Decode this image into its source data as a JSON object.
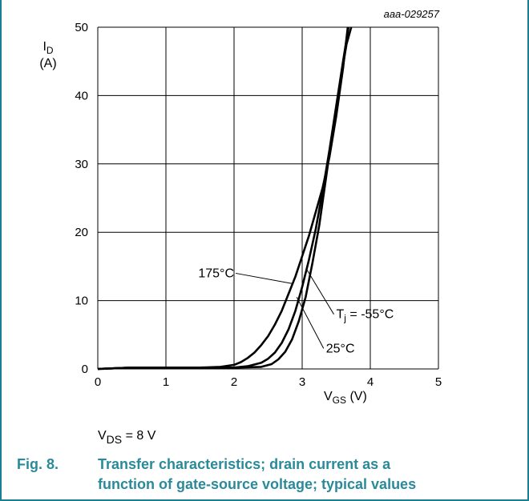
{
  "figure": {
    "code": "aaa-029257",
    "number": "Fig. 8.",
    "caption_line1": "Transfer characteristics; drain current as a",
    "caption_line2": "function of gate-source voltage; typical values",
    "condition": {
      "var": "V",
      "sub": "DS",
      "rest": " = 8 V"
    },
    "accent_color": "#2a8a9a"
  },
  "chart_data": {
    "type": "line",
    "xlabel": {
      "var": "V",
      "sub": "GS",
      "unit": " (V)"
    },
    "ylabel": {
      "var": "I",
      "sub": "D",
      "unit": "(A)"
    },
    "xlim": [
      0,
      5
    ],
    "ylim": [
      0,
      50
    ],
    "xticks": [
      "0",
      "1",
      "2",
      "3",
      "4",
      "5"
    ],
    "yticks": [
      "0",
      "10",
      "20",
      "30",
      "40",
      "50"
    ],
    "grid": true,
    "legend": "none",
    "series": [
      {
        "name": "175°C",
        "points": [
          [
            0,
            0
          ],
          [
            0.5,
            0.2
          ],
          [
            1,
            0.2
          ],
          [
            1.5,
            0.2
          ],
          [
            1.8,
            0.3
          ],
          [
            2.0,
            0.6
          ],
          [
            2.1,
            1.0
          ],
          [
            2.2,
            1.6
          ],
          [
            2.3,
            2.4
          ],
          [
            2.4,
            3.5
          ],
          [
            2.5,
            4.8
          ],
          [
            2.6,
            6.5
          ],
          [
            2.7,
            8.5
          ],
          [
            2.8,
            11
          ],
          [
            2.9,
            13.5
          ],
          [
            3.0,
            16.5
          ],
          [
            3.1,
            19.5
          ],
          [
            3.2,
            23
          ],
          [
            3.3,
            26.5
          ],
          [
            3.4,
            31
          ],
          [
            3.5,
            37
          ],
          [
            3.6,
            44
          ],
          [
            3.67,
            50
          ]
        ]
      },
      {
        "name": "25°C",
        "points": [
          [
            0,
            0
          ],
          [
            0.5,
            0.2
          ],
          [
            1,
            0.2
          ],
          [
            1.5,
            0.2
          ],
          [
            2.0,
            0.2
          ],
          [
            2.2,
            0.4
          ],
          [
            2.4,
            0.9
          ],
          [
            2.5,
            1.5
          ],
          [
            2.6,
            2.4
          ],
          [
            2.7,
            3.8
          ],
          [
            2.8,
            5.8
          ],
          [
            2.9,
            8.5
          ],
          [
            3.0,
            12
          ],
          [
            3.1,
            16
          ],
          [
            3.2,
            20.5
          ],
          [
            3.3,
            26
          ],
          [
            3.4,
            32
          ],
          [
            3.5,
            38.5
          ],
          [
            3.6,
            45
          ],
          [
            3.68,
            50
          ]
        ]
      },
      {
        "name": "T_j = -55°C",
        "points": [
          [
            0,
            0
          ],
          [
            0.5,
            0.2
          ],
          [
            1,
            0.2
          ],
          [
            1.5,
            0.2
          ],
          [
            2.0,
            0.2
          ],
          [
            2.4,
            0.3
          ],
          [
            2.55,
            0.7
          ],
          [
            2.65,
            1.4
          ],
          [
            2.75,
            2.5
          ],
          [
            2.85,
            4.3
          ],
          [
            2.95,
            7
          ],
          [
            3.05,
            10.5
          ],
          [
            3.15,
            15.5
          ],
          [
            3.25,
            21
          ],
          [
            3.35,
            28
          ],
          [
            3.45,
            35
          ],
          [
            3.55,
            41.5
          ],
          [
            3.65,
            47.5
          ],
          [
            3.72,
            50
          ]
        ]
      }
    ],
    "annotations": [
      {
        "text": "175°C",
        "x": 2.0,
        "y": 14,
        "anchor": "end",
        "target": [
          2.85,
          12.5
        ]
      },
      {
        "text": "T",
        "sub": "j",
        "rest": " = -55°C",
        "x": 3.5,
        "y": 8,
        "anchor": "start",
        "target": [
          3.07,
          14.5
        ]
      },
      {
        "text": "25°C",
        "x": 3.35,
        "y": 3,
        "anchor": "start",
        "target": [
          2.92,
          10.5
        ]
      }
    ]
  }
}
